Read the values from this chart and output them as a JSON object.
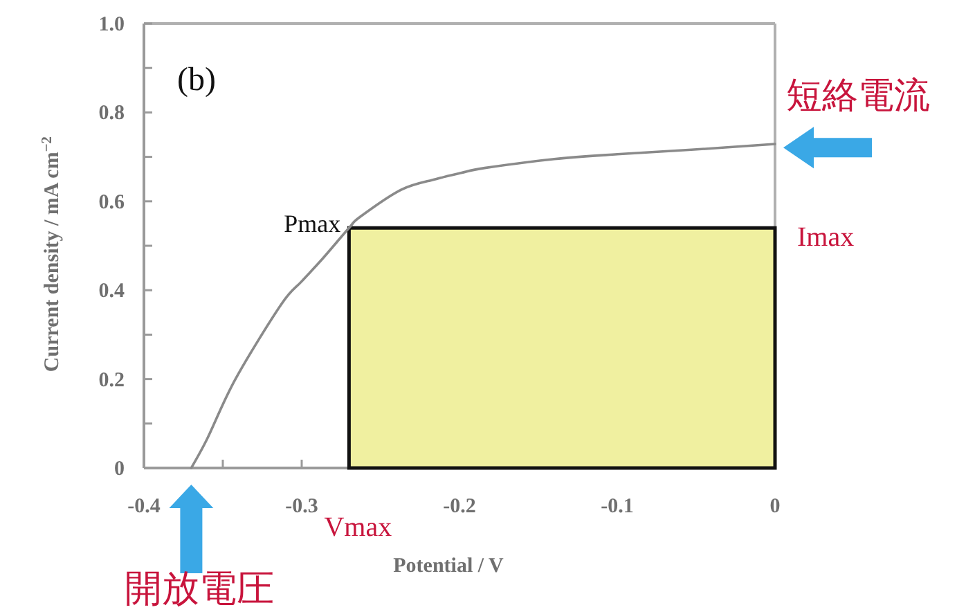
{
  "chart_data": {
    "type": "line",
    "xlabel": "Potential / V",
    "ylabel": "Current density / mA cm$^{−2}$",
    "xlim": [
      -0.4,
      0
    ],
    "xticks": [
      -0.4,
      {
        "value": -0.35,
        "label": null
      },
      -0.3,
      {
        "value": -0.25,
        "label": null
      },
      -0.2,
      {
        "value": -0.15,
        "label": null
      },
      -0.1,
      {
        "value": -0.05,
        "label": null
      },
      0
    ],
    "ylim": [
      0,
      1
    ],
    "yticks": [
      0,
      {
        "value": 0.1,
        "label": null
      },
      0.2,
      {
        "value": 0.3,
        "label": null
      },
      0.4,
      {
        "value": 0.5,
        "label": null
      },
      0.6,
      {
        "value": 0.7,
        "label": null
      },
      0.8,
      {
        "value": 0.9,
        "label": null
      },
      {
        "value": 1,
        "label": "1.0"
      }
    ],
    "series": [
      {
        "type": "area",
        "color": "#f0f0a0",
        "x": [
          -0.27,
          0
        ],
        "values": [
          0.54,
          0.54
        ]
      },
      {
        "color": "#8a8a8a",
        "x": [
          -0.37,
          -0.36,
          -0.342,
          -0.313,
          -0.3,
          -0.287,
          -0.27,
          -0.263,
          -0.237,
          -0.215,
          -0.199,
          -0.184,
          -0.14,
          -0.1,
          -0.053,
          0
        ],
        "values": [
          0,
          0.065,
          0.2,
          0.368,
          0.42,
          0.47,
          0.54,
          0.565,
          0.626,
          0.65,
          0.664,
          0.675,
          0.695,
          0.706,
          0.716,
          0.729
        ]
      }
    ],
    "annotations": [
      "(b)",
      {
        "text": "Pmax",
        "x": -0.27,
        "y": 0.54
      },
      {
        "text": "Imax",
        "x": 0,
        "y": 0.54
      },
      {
        "text": "Vmax",
        "x": -0.27,
        "y": 0
      },
      {
        "text": "短絡電流",
        "x": 0,
        "y": 0.73
      },
      {
        "text": "開放電圧",
        "x": -0.37,
        "y": 0
      }
    ]
  }
}
